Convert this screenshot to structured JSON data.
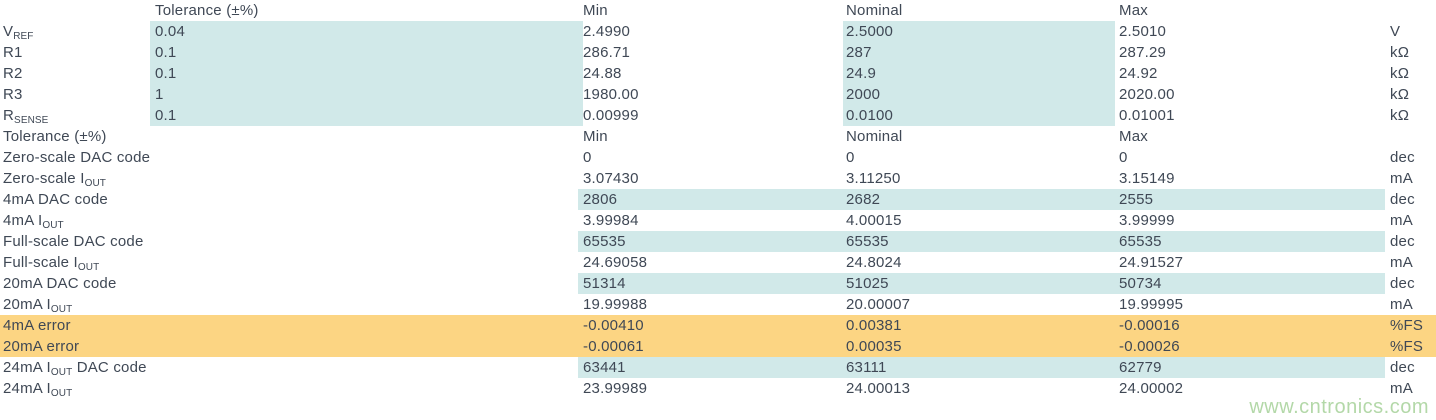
{
  "colors": {
    "teal_highlight": "#d1e9e9",
    "orange_highlight": "#fcd583",
    "text": "#3f4855",
    "watermark_green": "#b3d8a8"
  },
  "watermark": "www.cntronics.com",
  "sections": [
    {
      "header": {
        "label": "",
        "tolerance": "Tolerance (±%)",
        "min": "Min",
        "nominal": "Nominal",
        "max": "Max",
        "unit": ""
      },
      "rows": [
        {
          "label": [
            {
              "t": "V"
            },
            {
              "sub": "REF"
            }
          ],
          "tolerance": "0.04",
          "min": "2.4990",
          "nominal": "2.5000",
          "max": "2.5010",
          "unit": "V",
          "hl": "params"
        },
        {
          "label": [
            {
              "t": "R1"
            }
          ],
          "tolerance": "0.1",
          "min": "286.71",
          "nominal": "287",
          "max": "287.29",
          "unit": "kΩ",
          "hl": "params"
        },
        {
          "label": [
            {
              "t": "R2"
            }
          ],
          "tolerance": "0.1",
          "min": "24.88",
          "nominal": "24.9",
          "max": "24.92",
          "unit": "kΩ",
          "hl": "params"
        },
        {
          "label": [
            {
              "t": "R3"
            }
          ],
          "tolerance": "1",
          "min": "1980.00",
          "nominal": "2000",
          "max": "2020.00",
          "unit": "kΩ",
          "hl": "params"
        },
        {
          "label": [
            {
              "t": "R"
            },
            {
              "sub": "SENSE"
            }
          ],
          "tolerance": "0.1",
          "min": "0.00999",
          "nominal": "0.0100",
          "max": "0.01001",
          "unit": "kΩ",
          "hl": "params"
        }
      ]
    },
    {
      "header": {
        "label": "Tolerance (±%)",
        "min": "Min",
        "nominal": "Nominal",
        "max": "Max",
        "unit": ""
      },
      "rows": [
        {
          "label": [
            {
              "t": "Zero-scale DAC code"
            }
          ],
          "min": "0",
          "nominal": "0",
          "max": "0",
          "unit": "dec",
          "hl": "none"
        },
        {
          "label": [
            {
              "t": "Zero-scale I"
            },
            {
              "sub": "OUT"
            }
          ],
          "min": "3.07430",
          "nominal": "3.11250",
          "max": "3.15149",
          "unit": "mA",
          "hl": "none"
        },
        {
          "label": [
            {
              "t": "4mA DAC code"
            }
          ],
          "min": "2806",
          "nominal": "2682",
          "max": "2555",
          "unit": "dec",
          "hl": "code"
        },
        {
          "label": [
            {
              "t": "4mA I"
            },
            {
              "sub": "OUT"
            }
          ],
          "min": "3.99984",
          "nominal": "4.00015",
          "max": "3.99999",
          "unit": "mA",
          "hl": "none"
        },
        {
          "label": [
            {
              "t": "Full-scale DAC code"
            }
          ],
          "min": "65535",
          "nominal": "65535",
          "max": "65535",
          "unit": "dec",
          "hl": "code"
        },
        {
          "label": [
            {
              "t": "Full-scale I"
            },
            {
              "sub": "OUT"
            }
          ],
          "min": "24.69058",
          "nominal": "24.8024",
          "max": "24.91527",
          "unit": "mA",
          "hl": "none"
        },
        {
          "label": [
            {
              "t": "20mA DAC code"
            }
          ],
          "min": "51314",
          "nominal": "51025",
          "max": "50734",
          "unit": "dec",
          "hl": "code"
        },
        {
          "label": [
            {
              "t": "20mA I"
            },
            {
              "sub": "OUT"
            }
          ],
          "min": "19.99988",
          "nominal": "20.00007",
          "max": "19.99995",
          "unit": "mA",
          "hl": "none"
        },
        {
          "label": [
            {
              "t": "4mA error"
            }
          ],
          "min": "-0.00410",
          "nominal": "0.00381",
          "max": "-0.00016",
          "unit": "%FS",
          "hl": "error"
        },
        {
          "label": [
            {
              "t": "20mA error"
            }
          ],
          "min": "-0.00061",
          "nominal": "0.00035",
          "max": "-0.00026",
          "unit": "%FS",
          "hl": "error"
        },
        {
          "label": [
            {
              "t": "24mA I"
            },
            {
              "sub": "OUT"
            },
            {
              "t": " DAC code"
            }
          ],
          "min": "63441",
          "nominal": "63111",
          "max": "62779",
          "unit": "dec",
          "hl": "code"
        },
        {
          "label": [
            {
              "t": "24mA I"
            },
            {
              "sub": "OUT"
            }
          ],
          "min": "23.99989",
          "nominal": "24.00013",
          "max": "24.00002",
          "unit": "mA",
          "hl": "none"
        }
      ]
    }
  ]
}
